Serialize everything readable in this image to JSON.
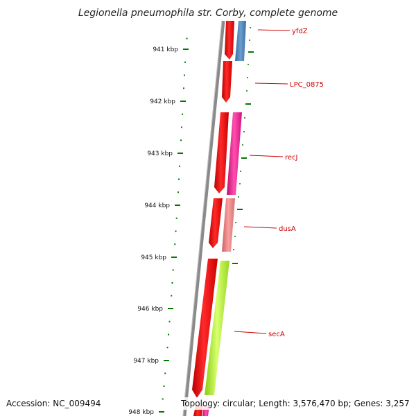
{
  "title": "Legionella pneumophila str. Corby, complete genome",
  "accession_text": "Accession: NC_009494",
  "summary_text": "Topology: circular; Length: 3,576,470 bp; Genes: 3,257",
  "kbp_ticks": [
    "941 kbp",
    "942 kbp",
    "943 kbp",
    "944 kbp",
    "945 kbp",
    "946 kbp",
    "947 kbp",
    "948 kbp"
  ],
  "genes": [
    {
      "name": "yfdZ",
      "strand": "forward"
    },
    {
      "name": "LPC_0875",
      "strand": "forward"
    },
    {
      "name": "recJ",
      "strand": "forward"
    },
    {
      "name": "dusA",
      "strand": "forward"
    },
    {
      "name": "secA",
      "strand": "forward"
    }
  ],
  "colors": {
    "backbone": "#808080",
    "cds_red": "#ff0000",
    "blue": "#4a82b8",
    "magenta": "#ff1493",
    "salmon": "#f08080",
    "lime": "#adff2f",
    "tick_green": "#007700",
    "label_red": "#cc0000"
  }
}
